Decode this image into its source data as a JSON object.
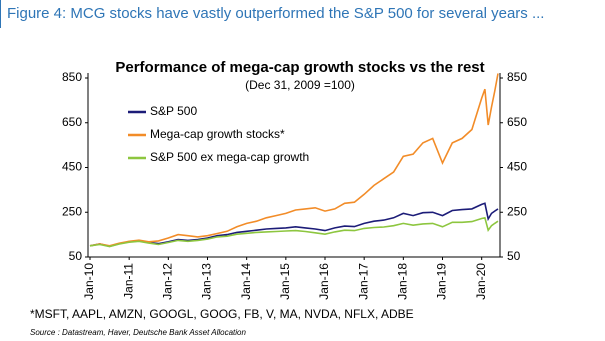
{
  "header": {
    "title": "Figure 4: MCG stocks have vastly outperformed the S&P 500 for several years ..."
  },
  "chart_data": {
    "type": "line",
    "title": "Performance of mega-cap growth stocks vs the rest",
    "subtitle": "(Dec 31, 2009 =100)",
    "x": [
      "Jan-10",
      "Apr-10",
      "Jul-10",
      "Oct-10",
      "Jan-11",
      "Apr-11",
      "Jul-11",
      "Oct-11",
      "Jan-12",
      "Apr-12",
      "Jul-12",
      "Oct-12",
      "Jan-13",
      "Apr-13",
      "Jul-13",
      "Oct-13",
      "Jan-14",
      "Apr-14",
      "Jul-14",
      "Oct-14",
      "Jan-15",
      "Apr-15",
      "Jul-15",
      "Oct-15",
      "Jan-16",
      "Apr-16",
      "Jul-16",
      "Oct-16",
      "Jan-17",
      "Apr-17",
      "Jul-17",
      "Oct-17",
      "Jan-18",
      "Apr-18",
      "Jul-18",
      "Oct-18",
      "Jan-19",
      "Apr-19",
      "Jul-19",
      "Oct-19",
      "Jan-20",
      "Feb-20",
      "Mar-20",
      "Apr-20",
      "May-20",
      "Jun-20"
    ],
    "xticks": [
      "Jan-10",
      "Jan-11",
      "Jan-12",
      "Jan-13",
      "Jan-14",
      "Jan-15",
      "Jan-16",
      "Jan-17",
      "Jan-18",
      "Jan-19",
      "Jan-20"
    ],
    "series": [
      {
        "name": "S&P 500",
        "color": "#1c1c78",
        "values": [
          100,
          108,
          98,
          110,
          118,
          122,
          115,
          110,
          118,
          128,
          124,
          128,
          135,
          145,
          150,
          160,
          165,
          170,
          175,
          178,
          180,
          185,
          180,
          175,
          168,
          180,
          188,
          186,
          200,
          210,
          215,
          225,
          245,
          235,
          248,
          250,
          235,
          258,
          262,
          265,
          285,
          290,
          220,
          245,
          255,
          265
        ]
      },
      {
        "name": "Mega-cap growth stocks*",
        "color": "#f28c28",
        "values": [
          100,
          108,
          100,
          112,
          120,
          125,
          118,
          122,
          135,
          150,
          145,
          140,
          145,
          155,
          165,
          185,
          200,
          210,
          225,
          235,
          245,
          260,
          265,
          270,
          255,
          265,
          290,
          295,
          330,
          370,
          400,
          430,
          500,
          510,
          560,
          580,
          470,
          560,
          580,
          620,
          760,
          800,
          640,
          720,
          790,
          870
        ]
      },
      {
        "name": "S&P 500 ex mega-cap growth",
        "color": "#8dc63f",
        "values": [
          100,
          106,
          97,
          108,
          116,
          120,
          112,
          106,
          115,
          124,
          120,
          124,
          130,
          140,
          143,
          152,
          156,
          160,
          162,
          164,
          166,
          168,
          164,
          158,
          152,
          162,
          170,
          168,
          178,
          182,
          184,
          190,
          200,
          192,
          198,
          200,
          185,
          205,
          205,
          208,
          222,
          225,
          170,
          190,
          200,
          210
        ]
      }
    ],
    "ylim": [
      50,
      850
    ],
    "yticks": [
      50,
      250,
      450,
      650,
      850
    ],
    "y2lim": [
      50,
      850
    ],
    "y2ticks": [
      50,
      250,
      450,
      650,
      850
    ],
    "footnote": "*MSFT, AAPL, AMZN, GOOGL, GOOG, FB, V, MA, NVDA, NFLX, ADBE",
    "source": "Source : Datastream, Haver, Deutsche Bank Asset Allocation"
  }
}
